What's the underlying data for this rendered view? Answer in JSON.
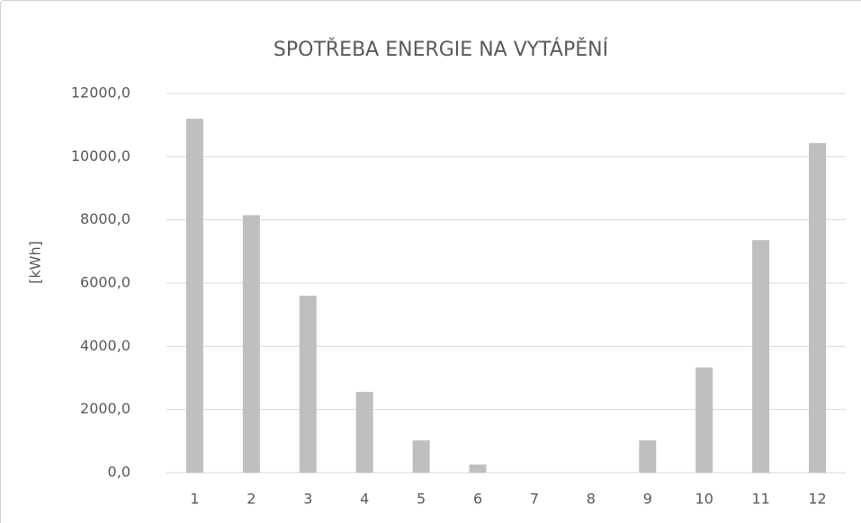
{
  "chart_data": {
    "type": "bar",
    "title": "SPOTŘEBA ENERGIE NA VYTÁPĚNÍ",
    "y_label": "[kWh]",
    "categories": [
      "1",
      "2",
      "3",
      "4",
      "5",
      "6",
      "7",
      "8",
      "9",
      "10",
      "11",
      "12"
    ],
    "values": [
      11200,
      8150,
      5600,
      2560,
      1020,
      260,
      0,
      0,
      1020,
      3330,
      7360,
      10430
    ],
    "color": "#bfbfbf",
    "ylim": [
      0,
      12000
    ],
    "yticks": [
      {
        "value": 0,
        "label": "0,0"
      },
      {
        "value": 2000,
        "label": "2000,0"
      },
      {
        "value": 4000,
        "label": "4000,0"
      },
      {
        "value": 6000,
        "label": "6000,0"
      },
      {
        "value": 8000,
        "label": "8000,0"
      },
      {
        "value": 10000,
        "label": "10000,0"
      },
      {
        "value": 12000,
        "label": "12000,0"
      }
    ],
    "grid": true
  }
}
